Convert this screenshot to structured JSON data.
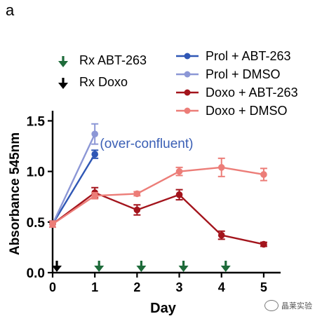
{
  "panel_label": "a",
  "watermark": "晶莱实验",
  "chart_data": {
    "type": "line",
    "xlabel": "Day",
    "ylabel": "Absorbance 545nm",
    "xlim": [
      0,
      5.4
    ],
    "ylim": [
      0,
      1.6
    ],
    "xticks": [
      0,
      1,
      2,
      3,
      4,
      5
    ],
    "yticks": [
      0.0,
      0.5,
      1.0,
      1.5
    ],
    "ytick_labels": [
      "0.0",
      "0.5",
      "1.0",
      "1.5"
    ],
    "grid": false,
    "legend_position": "top",
    "annotation": {
      "text": "(over-confluent)",
      "x": 1.12,
      "y": 1.28,
      "color": "#3a5fb5"
    },
    "treatment_legend": [
      {
        "label": "Rx ABT-263",
        "color": "#1e6b3a"
      },
      {
        "label": "Rx Doxo",
        "color": "#000000"
      }
    ],
    "treatment_markers": [
      {
        "day": 0.1,
        "type": "Rx Doxo",
        "color": "#000000"
      },
      {
        "day": 1.1,
        "type": "Rx ABT-263",
        "color": "#1e6b3a"
      },
      {
        "day": 2.1,
        "type": "Rx ABT-263",
        "color": "#1e6b3a"
      },
      {
        "day": 3.1,
        "type": "Rx ABT-263",
        "color": "#1e6b3a"
      },
      {
        "day": 4.1,
        "type": "Rx ABT-263",
        "color": "#1e6b3a"
      }
    ],
    "series": [
      {
        "name": "Prol + ABT-263",
        "color": "#2f57b5",
        "x": [
          0,
          1
        ],
        "y": [
          0.48,
          1.17
        ],
        "err": [
          0.03,
          0.04
        ]
      },
      {
        "name": "Prol + DMSO",
        "color": "#8c97d6",
        "x": [
          0,
          1
        ],
        "y": [
          0.48,
          1.37
        ],
        "err": [
          0.03,
          0.1
        ]
      },
      {
        "name": "Doxo + ABT-263",
        "color": "#a3141c",
        "x": [
          0,
          1,
          2,
          3,
          4,
          5
        ],
        "y": [
          0.48,
          0.79,
          0.62,
          0.77,
          0.37,
          0.28
        ],
        "err": [
          0.03,
          0.05,
          0.05,
          0.05,
          0.04,
          0.02
        ]
      },
      {
        "name": "Doxo + DMSO",
        "color": "#ec7d78",
        "x": [
          0,
          1,
          2,
          3,
          4,
          5
        ],
        "y": [
          0.48,
          0.76,
          0.78,
          1.0,
          1.04,
          0.97
        ],
        "err": [
          0.03,
          0.03,
          0.02,
          0.04,
          0.09,
          0.06
        ]
      }
    ]
  }
}
